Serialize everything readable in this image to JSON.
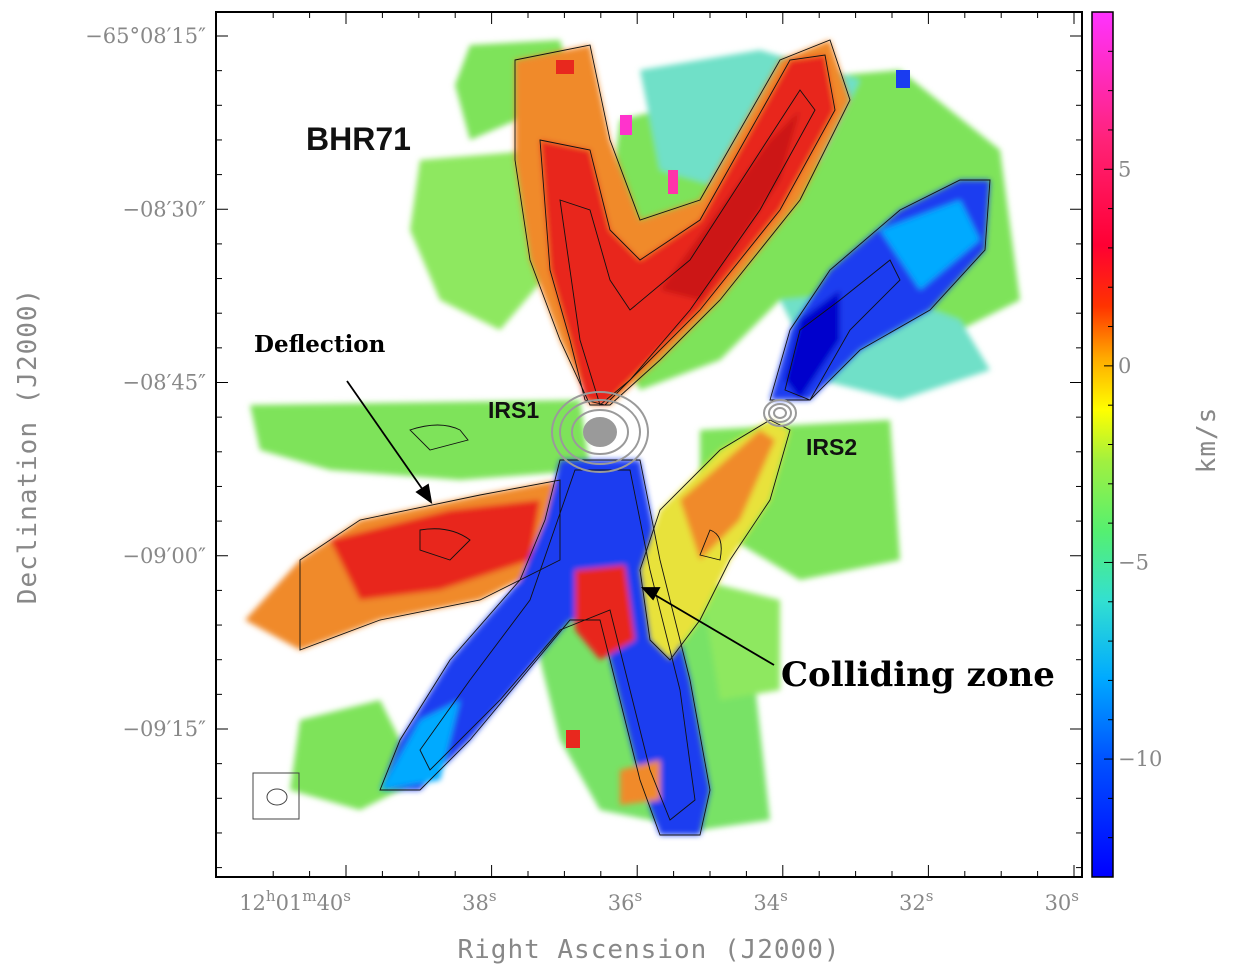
{
  "chart_data": {
    "type": "heatmap",
    "title": "BHR71",
    "xlabel": "Right Ascension (J2000)",
    "ylabel": "Declination (J2000)",
    "x_ticks": [
      {
        "value_s": 40,
        "parts": [
          [
            "12",
            ""
          ],
          [
            "h",
            "sup"
          ],
          [
            "01",
            ""
          ],
          [
            "m",
            "sup"
          ],
          [
            "40",
            ""
          ],
          [
            "s",
            "sup"
          ]
        ]
      },
      {
        "value_s": 38,
        "parts": [
          [
            "38",
            ""
          ],
          [
            "s",
            "sup"
          ]
        ]
      },
      {
        "value_s": 36,
        "parts": [
          [
            "36",
            ""
          ],
          [
            "s",
            "sup"
          ]
        ]
      },
      {
        "value_s": 34,
        "parts": [
          [
            "34",
            ""
          ],
          [
            "s",
            "sup"
          ]
        ]
      },
      {
        "value_s": 32,
        "parts": [
          [
            "32",
            ""
          ],
          [
            "s",
            "sup"
          ]
        ]
      },
      {
        "value_s": 30,
        "parts": [
          [
            "30",
            ""
          ],
          [
            "s",
            "sup"
          ]
        ]
      }
    ],
    "y_ticks": [
      {
        "value_arcsec": -15,
        "label": "−65°08′15″"
      },
      {
        "value_arcsec": -30,
        "label": "−08′30″"
      },
      {
        "value_arcsec": -45,
        "label": "−08′45″"
      },
      {
        "value_arcsec": -60,
        "label": "−09′00″"
      },
      {
        "value_arcsec": -75,
        "label": "−09′15″"
      }
    ],
    "colorbar": {
      "label": "km/s",
      "range": [
        -13,
        9
      ],
      "ticks": [
        {
          "value": 5,
          "label": "5"
        },
        {
          "value": 0,
          "label": "0"
        },
        {
          "value": -5,
          "label": "−5"
        },
        {
          "value": -10,
          "label": "−10"
        }
      ],
      "colors": [
        "#0000ff",
        "#00aaff",
        "#33e0d0",
        "#66ff66",
        "#ffff00",
        "#ff9900",
        "#ff0000",
        "#ff00ff"
      ]
    },
    "annotations": {
      "irs1": "IRS1",
      "irs2": "IRS2",
      "deflection": "Deflection",
      "colliding": "Colliding zone"
    },
    "sources": [
      {
        "name": "IRS1",
        "ra_s": 36.5,
        "dec_arcsec": -49.5
      },
      {
        "name": "IRS2",
        "ra_s": 34.1,
        "dec_arcsec": -48.5
      }
    ],
    "colors": {
      "red_lobe": "#e8281e",
      "blue_lobe": "#1a3cf0",
      "ambient": "#7ee35a",
      "cyan": "#6fe0c8",
      "orange": "#f08a2a",
      "yellow": "#e8e23a",
      "contour_black": "#111111",
      "contour_grey": "#9a9a9a"
    }
  }
}
